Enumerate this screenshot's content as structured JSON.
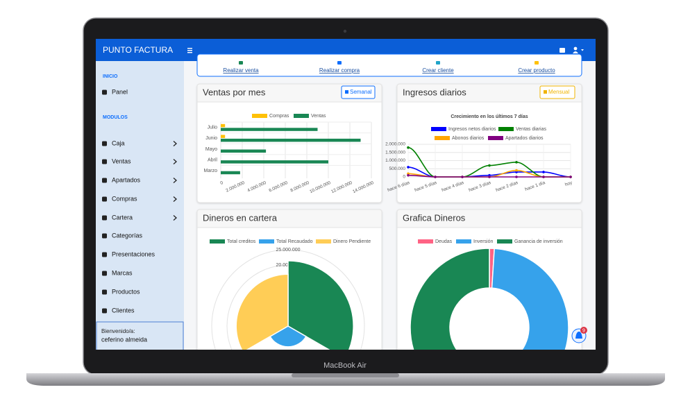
{
  "device": "MacBook Air",
  "navbar": {
    "brand": "PUNTO FACTURA"
  },
  "sidebar": {
    "sections": [
      {
        "title": "INICIO",
        "items": [
          "Panel"
        ]
      },
      {
        "title": "MODULOS",
        "items": [
          "Caja",
          "Ventas",
          "Apartados",
          "Compras",
          "Cartera",
          "Categorías",
          "Presentaciones",
          "Marcas",
          "Productos",
          "Clientes"
        ]
      }
    ],
    "welcome": "Bienvenido/a:",
    "user": "ceferino almeida"
  },
  "quick_actions": [
    "Realizar venta",
    "Realizar compra",
    "Crear cliente",
    "Crear producto"
  ],
  "notifications": 9,
  "chart_data": [
    {
      "type": "bar",
      "orientation": "horizontal",
      "title": "Ventas por mes",
      "button": "Semanal",
      "categories": [
        "Julio",
        "Junio",
        "Mayo",
        "Abril",
        "Marzo"
      ],
      "series": [
        {
          "name": "Compras",
          "color": "#ffc107",
          "values": [
            400000,
            400000,
            0,
            0,
            0
          ]
        },
        {
          "name": "Ventas",
          "color": "#198754",
          "values": [
            9000000,
            13000000,
            4200000,
            10000000,
            1800000
          ]
        }
      ],
      "xlim": [
        0,
        14000000
      ],
      "xticks": [
        0,
        {
          "value": 2000000,
          "label": "2.000.000"
        },
        {
          "value": 4000000,
          "label": "4.000.000"
        },
        {
          "value": 6000000,
          "label": "6.000.000"
        },
        {
          "value": 8000000,
          "label": "8.000.000"
        },
        {
          "value": 10000000,
          "label": "10.000.000"
        },
        {
          "value": 12000000,
          "label": "12.000.000"
        },
        {
          "value": 14000000,
          "label": "14.000.000"
        }
      ],
      "grid": true,
      "legend": "top"
    },
    {
      "type": "line",
      "title": "Ingresos diarios",
      "button": "Mensual",
      "subtitle": "Crecimiento en los últimos 7 días",
      "categories": [
        "hace 6 días",
        "hace 5 días",
        "hace 4 días",
        "hace 3 días",
        "hace 2 días",
        "hace 1 día",
        "hoy"
      ],
      "series": [
        {
          "name": "Ingresos netos diarios",
          "color": "#0000ff",
          "values": [
            600000,
            0,
            0,
            100000,
            300000,
            300000,
            0
          ]
        },
        {
          "name": "Ventas diarias",
          "color": "#008000",
          "values": [
            1800000,
            0,
            0,
            700000,
            900000,
            0,
            0
          ]
        },
        {
          "name": "Abonos diarios",
          "color": "#ffa500",
          "values": [
            200000,
            0,
            0,
            0,
            400000,
            0,
            0
          ]
        },
        {
          "name": "Apartados diarios",
          "color": "#800080",
          "values": [
            100000,
            0,
            0,
            0,
            0,
            0,
            0
          ]
        }
      ],
      "ylim": [
        0,
        2000000
      ],
      "yticks": [
        0,
        {
          "value": 500000,
          "label": "500.000"
        },
        {
          "value": 1000000,
          "label": "1.000.000"
        },
        {
          "value": 1500000,
          "label": "1.500.000"
        },
        {
          "value": 2000000,
          "label": "2.000.000"
        }
      ],
      "grid": true,
      "legend": "top"
    },
    {
      "type": "polarArea",
      "title": "Dineros en cartera",
      "categories": [
        "Total creditos",
        "Total Recaudado",
        "Dinero Pendiente"
      ],
      "values": [
        21400000,
        6800000,
        17000000
      ],
      "colors": [
        "#198754",
        "#36a2eb",
        "#ffcd56"
      ],
      "rlim": [
        0,
        25000000
      ],
      "rticks": [
        {
          "value": 20000000,
          "label": "20.000.000"
        },
        {
          "value": 25000000,
          "label": "25.000.000"
        }
      ],
      "legend": "top"
    },
    {
      "type": "doughnut",
      "title": "Grafica Dineros",
      "categories": [
        "Deudas",
        "Inversión",
        "Ganancia de inversión"
      ],
      "values": [
        1,
        50,
        49
      ],
      "colors": [
        "#ff6384",
        "#36a2eb",
        "#198754"
      ],
      "legend": "top"
    }
  ]
}
